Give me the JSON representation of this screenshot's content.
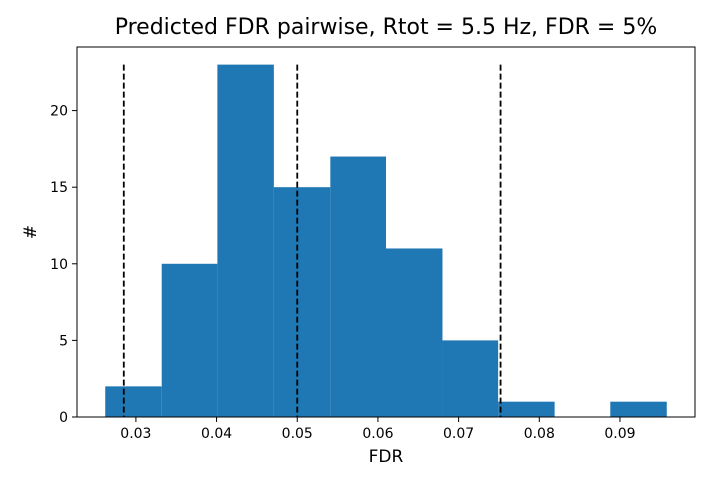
{
  "chart_data": {
    "type": "bar",
    "title": "Predicted FDR pairwise, Rtot = 5.5 Hz, FDR = 5%",
    "xlabel": "FDR",
    "ylabel": "#",
    "bins": [
      {
        "x0": 0.0262,
        "x1": 0.0332,
        "count": 2
      },
      {
        "x0": 0.0332,
        "x1": 0.0401,
        "count": 10
      },
      {
        "x0": 0.0401,
        "x1": 0.0471,
        "count": 23
      },
      {
        "x0": 0.0471,
        "x1": 0.0541,
        "count": 15
      },
      {
        "x0": 0.0541,
        "x1": 0.061,
        "count": 17
      },
      {
        "x0": 0.061,
        "x1": 0.068,
        "count": 11
      },
      {
        "x0": 0.068,
        "x1": 0.0749,
        "count": 5
      },
      {
        "x0": 0.0749,
        "x1": 0.0819,
        "count": 1
      },
      {
        "x0": 0.0819,
        "x1": 0.0888,
        "count": 0
      },
      {
        "x0": 0.0888,
        "x1": 0.0958,
        "count": 1
      }
    ],
    "reference_lines": [
      0.0285,
      0.05,
      0.0752
    ],
    "xlim": [
      0.0227,
      0.0993
    ],
    "ylim": [
      0,
      24.15
    ],
    "xticks": [
      "0.03",
      "0.04",
      "0.05",
      "0.06",
      "0.07",
      "0.08",
      "0.09"
    ],
    "yticks": [
      "0",
      "5",
      "10",
      "15",
      "20"
    ],
    "grid": false,
    "colors": {
      "bars": "#1f77b4",
      "reference_lines": "#000000"
    }
  }
}
